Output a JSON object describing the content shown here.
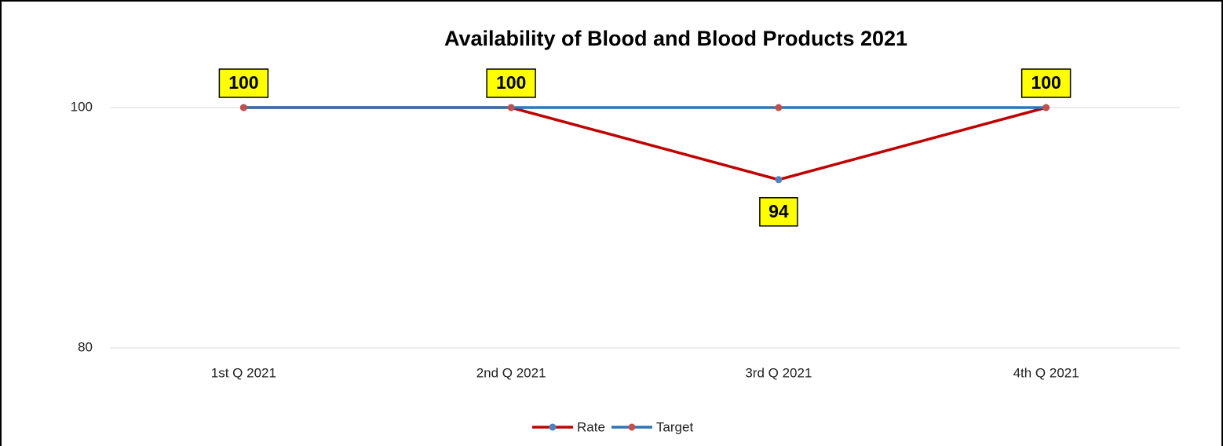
{
  "chart_data": {
    "type": "line",
    "title": "Availability of Blood and Blood Products 2021",
    "categories": [
      "1st  Q 2021",
      "2nd Q 2021",
      "3rd Q 2021",
      "4th Q 2021"
    ],
    "series": [
      {
        "name": "Rate",
        "color": "#C00000",
        "marker_color": "#4F81BD",
        "values": [
          100,
          100,
          94,
          100
        ],
        "data_labels": true
      },
      {
        "name": "Target",
        "color": "#2E75B6",
        "marker_color": "#C0504D",
        "values": [
          100,
          100,
          100,
          100
        ]
      }
    ],
    "ylim": [
      80,
      100
    ],
    "yticks": [
      80,
      100
    ],
    "grid": true,
    "legend": "bottom"
  }
}
